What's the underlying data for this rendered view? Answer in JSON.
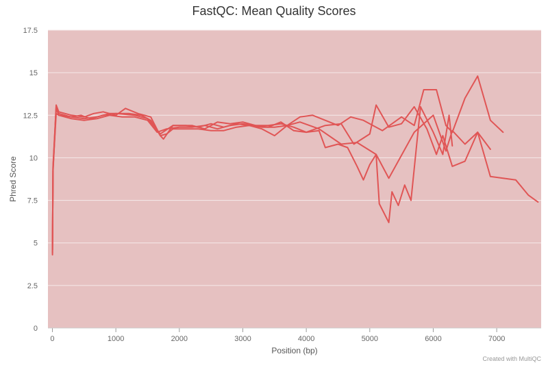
{
  "chart_data": {
    "type": "line",
    "title": "FastQC: Mean Quality Scores",
    "xlabel": "Position (bp)",
    "ylabel": "Phred Score",
    "xlim": [
      -70,
      7700
    ],
    "ylim": [
      0,
      17.5
    ],
    "x_ticks": [
      0,
      1000,
      2000,
      3000,
      4000,
      5000,
      6000,
      7000
    ],
    "x_tick_labels": [
      "0",
      "1000",
      "2000",
      "3000",
      "4000",
      "5000",
      "6000",
      "7000"
    ],
    "y_ticks": [
      0,
      2.5,
      5,
      7.5,
      10,
      12.5,
      15,
      17.5
    ],
    "y_tick_labels": [
      "0",
      "2.5",
      "5",
      "7.5",
      "10",
      "12.5",
      "15",
      "17.5"
    ],
    "grid": true,
    "background_color": "#e6c1c1",
    "line_color": "#e05555",
    "credit": "Created with MultiQC",
    "series": [
      {
        "values": [
          [
            1,
            4.3
          ],
          [
            10,
            9.5
          ],
          [
            60,
            13.0
          ],
          [
            100,
            12.6
          ],
          [
            300,
            12.4
          ],
          [
            500,
            12.3
          ],
          [
            700,
            12.4
          ],
          [
            900,
            12.6
          ],
          [
            1200,
            12.6
          ],
          [
            1400,
            12.5
          ],
          [
            1550,
            12.2
          ],
          [
            1700,
            11.3
          ],
          [
            1800,
            11.4
          ],
          [
            1900,
            11.7
          ],
          [
            2100,
            11.7
          ],
          [
            2300,
            11.7
          ],
          [
            2500,
            11.6
          ],
          [
            2700,
            11.6
          ],
          [
            2900,
            11.8
          ],
          [
            3100,
            11.9
          ],
          [
            3300,
            11.8
          ],
          [
            3500,
            11.8
          ],
          [
            3700,
            11.9
          ],
          [
            3900,
            12.1
          ],
          [
            4200,
            11.7
          ],
          [
            4550,
            10.8
          ],
          [
            4800,
            10.9
          ],
          [
            5100,
            10.2
          ],
          [
            5300,
            8.8
          ],
          [
            5700,
            11.5
          ],
          [
            6000,
            12.5
          ],
          [
            6200,
            10.4
          ],
          [
            6300,
            11.6
          ],
          [
            6500,
            10.8
          ],
          [
            6700,
            11.5
          ],
          [
            6900,
            8.9
          ],
          [
            7100,
            8.8
          ],
          [
            7300,
            8.7
          ],
          [
            7500,
            7.8
          ],
          [
            7650,
            7.4
          ]
        ]
      },
      {
        "values": [
          [
            1,
            4.6
          ],
          [
            10,
            9.2
          ],
          [
            60,
            12.9
          ],
          [
            100,
            12.5
          ],
          [
            300,
            12.4
          ],
          [
            450,
            12.5
          ],
          [
            600,
            12.3
          ],
          [
            800,
            12.5
          ],
          [
            1000,
            12.6
          ],
          [
            1300,
            12.5
          ],
          [
            1500,
            12.3
          ],
          [
            1700,
            11.4
          ],
          [
            1900,
            11.9
          ],
          [
            2100,
            11.9
          ],
          [
            2300,
            11.8
          ],
          [
            2500,
            12.0
          ],
          [
            2700,
            11.8
          ],
          [
            2900,
            12.0
          ],
          [
            3100,
            11.9
          ],
          [
            3300,
            11.7
          ],
          [
            3500,
            11.3
          ],
          [
            3700,
            11.9
          ],
          [
            3900,
            12.4
          ],
          [
            4100,
            12.5
          ],
          [
            4500,
            11.9
          ],
          [
            4700,
            12.4
          ],
          [
            4900,
            12.2
          ],
          [
            5200,
            11.6
          ],
          [
            5500,
            12.4
          ],
          [
            5700,
            11.9
          ],
          [
            5850,
            14.0
          ],
          [
            6050,
            14.0
          ],
          [
            6200,
            11.9
          ],
          [
            6300,
            11.5
          ],
          [
            6500,
            13.5
          ],
          [
            6700,
            14.8
          ],
          [
            6900,
            12.2
          ],
          [
            7100,
            11.5
          ]
        ]
      },
      {
        "values": [
          [
            1,
            4.6
          ],
          [
            10,
            9.3
          ],
          [
            60,
            13.1
          ],
          [
            100,
            12.7
          ],
          [
            300,
            12.5
          ],
          [
            500,
            12.4
          ],
          [
            650,
            12.6
          ],
          [
            800,
            12.7
          ],
          [
            1000,
            12.5
          ],
          [
            1150,
            12.9
          ],
          [
            1350,
            12.6
          ],
          [
            1550,
            12.4
          ],
          [
            1700,
            11.3
          ],
          [
            1750,
            11.1
          ],
          [
            1900,
            11.9
          ],
          [
            2200,
            11.9
          ],
          [
            2400,
            11.7
          ],
          [
            2600,
            12.1
          ],
          [
            2800,
            12.0
          ],
          [
            3000,
            12.1
          ],
          [
            3200,
            11.9
          ],
          [
            3400,
            11.9
          ],
          [
            3600,
            12.0
          ],
          [
            3800,
            11.8
          ],
          [
            4000,
            11.5
          ],
          [
            4200,
            11.6
          ],
          [
            4300,
            10.6
          ],
          [
            4500,
            10.8
          ],
          [
            4650,
            10.6
          ],
          [
            4800,
            9.5
          ],
          [
            4900,
            8.7
          ],
          [
            5000,
            9.6
          ],
          [
            5100,
            10.2
          ],
          [
            5150,
            7.3
          ],
          [
            5300,
            6.2
          ],
          [
            5350,
            8.0
          ],
          [
            5450,
            7.2
          ],
          [
            5550,
            8.4
          ],
          [
            5650,
            7.5
          ],
          [
            5800,
            13.0
          ],
          [
            6000,
            11.5
          ],
          [
            6150,
            10.2
          ],
          [
            6250,
            12.5
          ],
          [
            6300,
            10.7
          ]
        ]
      },
      {
        "values": [
          [
            1,
            4.4
          ],
          [
            10,
            9.4
          ],
          [
            60,
            12.6
          ],
          [
            100,
            12.5
          ],
          [
            300,
            12.3
          ],
          [
            500,
            12.2
          ],
          [
            700,
            12.3
          ],
          [
            900,
            12.5
          ],
          [
            1100,
            12.4
          ],
          [
            1300,
            12.4
          ],
          [
            1500,
            12.2
          ],
          [
            1650,
            11.5
          ],
          [
            1800,
            11.7
          ],
          [
            2000,
            11.8
          ],
          [
            2200,
            11.8
          ],
          [
            2400,
            11.9
          ],
          [
            2600,
            11.7
          ],
          [
            2800,
            11.9
          ],
          [
            3000,
            12.0
          ],
          [
            3200,
            11.9
          ],
          [
            3400,
            11.8
          ],
          [
            3600,
            12.1
          ],
          [
            3800,
            11.6
          ],
          [
            4000,
            11.5
          ],
          [
            4300,
            11.9
          ],
          [
            4550,
            12.0
          ],
          [
            4750,
            10.8
          ],
          [
            5000,
            11.4
          ],
          [
            5100,
            13.1
          ],
          [
            5300,
            11.8
          ],
          [
            5500,
            12.0
          ],
          [
            5700,
            13.0
          ],
          [
            5900,
            11.7
          ],
          [
            6050,
            10.2
          ],
          [
            6150,
            11.3
          ],
          [
            6300,
            9.5
          ],
          [
            6500,
            9.8
          ],
          [
            6700,
            11.5
          ],
          [
            6900,
            10.5
          ]
        ]
      }
    ]
  }
}
